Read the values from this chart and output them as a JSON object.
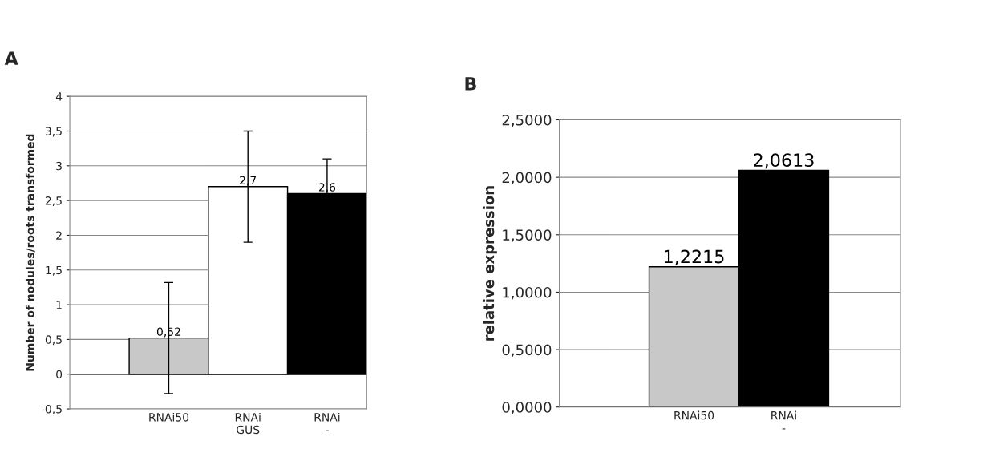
{
  "chart_data": [
    {
      "type": "bar",
      "title": "A",
      "ylabel": "Number of nodules/roots transformed",
      "categories": [
        "RNAi50",
        "RNAi\nGUS",
        "RNAi\n-"
      ],
      "values": [
        0.52,
        2.7,
        2.6
      ],
      "colors": [
        "#c8c8c8",
        "#ffffff",
        "#000000"
      ],
      "errors": [
        0.8,
        0.8,
        0.5
      ],
      "value_labels": [
        "0,52",
        "2,7",
        "2,6"
      ],
      "ylim": [
        -0.5,
        4
      ],
      "yticks": [
        {
          "value": -0.5,
          "label": "-0,5"
        },
        0,
        {
          "value": 0.5,
          "label": "0,5"
        },
        1,
        {
          "value": 1.5,
          "label": "1,5"
        },
        2,
        {
          "value": 2.5,
          "label": "2,5"
        },
        3,
        {
          "value": 3.5,
          "label": "3,5"
        },
        4
      ],
      "grid": "y"
    },
    {
      "type": "bar",
      "title": "B",
      "ylabel": "relative expression",
      "categories": [
        "RNAi50",
        "RNAi\n-"
      ],
      "values": [
        1.2215,
        2.0613
      ],
      "colors": [
        "#c8c8c8",
        "#000000"
      ],
      "value_labels": [
        "1,2215",
        "2,0613"
      ],
      "ylim": [
        0,
        2.5
      ],
      "yticks": [
        {
          "value": 0,
          "label": "0,0000"
        },
        {
          "value": 0.5,
          "label": "0,5000"
        },
        {
          "value": 1,
          "label": "1,0000"
        },
        {
          "value": 1.5,
          "label": "1,5000"
        },
        {
          "value": 2,
          "label": "2,0000"
        },
        {
          "value": 2.5,
          "label": "2,5000"
        }
      ],
      "grid": "y"
    }
  ]
}
